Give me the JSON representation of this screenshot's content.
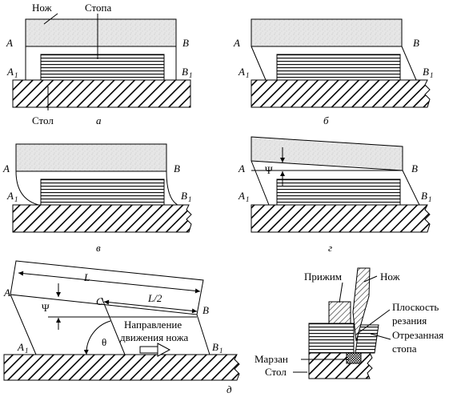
{
  "panel_a": {
    "knife": "Нож",
    "stack": "Стопа",
    "table": "Стол",
    "A": "A",
    "B": "B",
    "A1": "A",
    "B1": "B",
    "sub1": "1",
    "caption": "а"
  },
  "panel_b": {
    "A": "A",
    "B": "B",
    "A1": "A",
    "B1": "B",
    "sub1": "1",
    "caption": "б"
  },
  "panel_v": {
    "A": "A",
    "B": "B",
    "A1": "A",
    "B1": "B",
    "sub1": "1",
    "caption": "в"
  },
  "panel_g": {
    "A": "A",
    "B": "B",
    "A1": "A",
    "B1": "B",
    "sub1": "1",
    "psi": "Ψ",
    "caption": "г"
  },
  "panel_d": {
    "A": "A",
    "B": "B",
    "A1": "A",
    "B1": "B",
    "sub1": "1",
    "C": "C",
    "L": "L",
    "L2": "L/2",
    "psi": "Ψ",
    "theta": "θ",
    "direction_line1": "Направление",
    "direction_line2": "движения ножа",
    "caption": "д"
  },
  "panel_e": {
    "clamp": "Прижим",
    "knife": "Нож",
    "cut_plane_line1": "Плоскость",
    "cut_plane_line2": "резания",
    "cut_stack_line1": "Отрезанная",
    "cut_stack_line2": "стопа",
    "marzan": "Марзан",
    "table": "Стол"
  }
}
